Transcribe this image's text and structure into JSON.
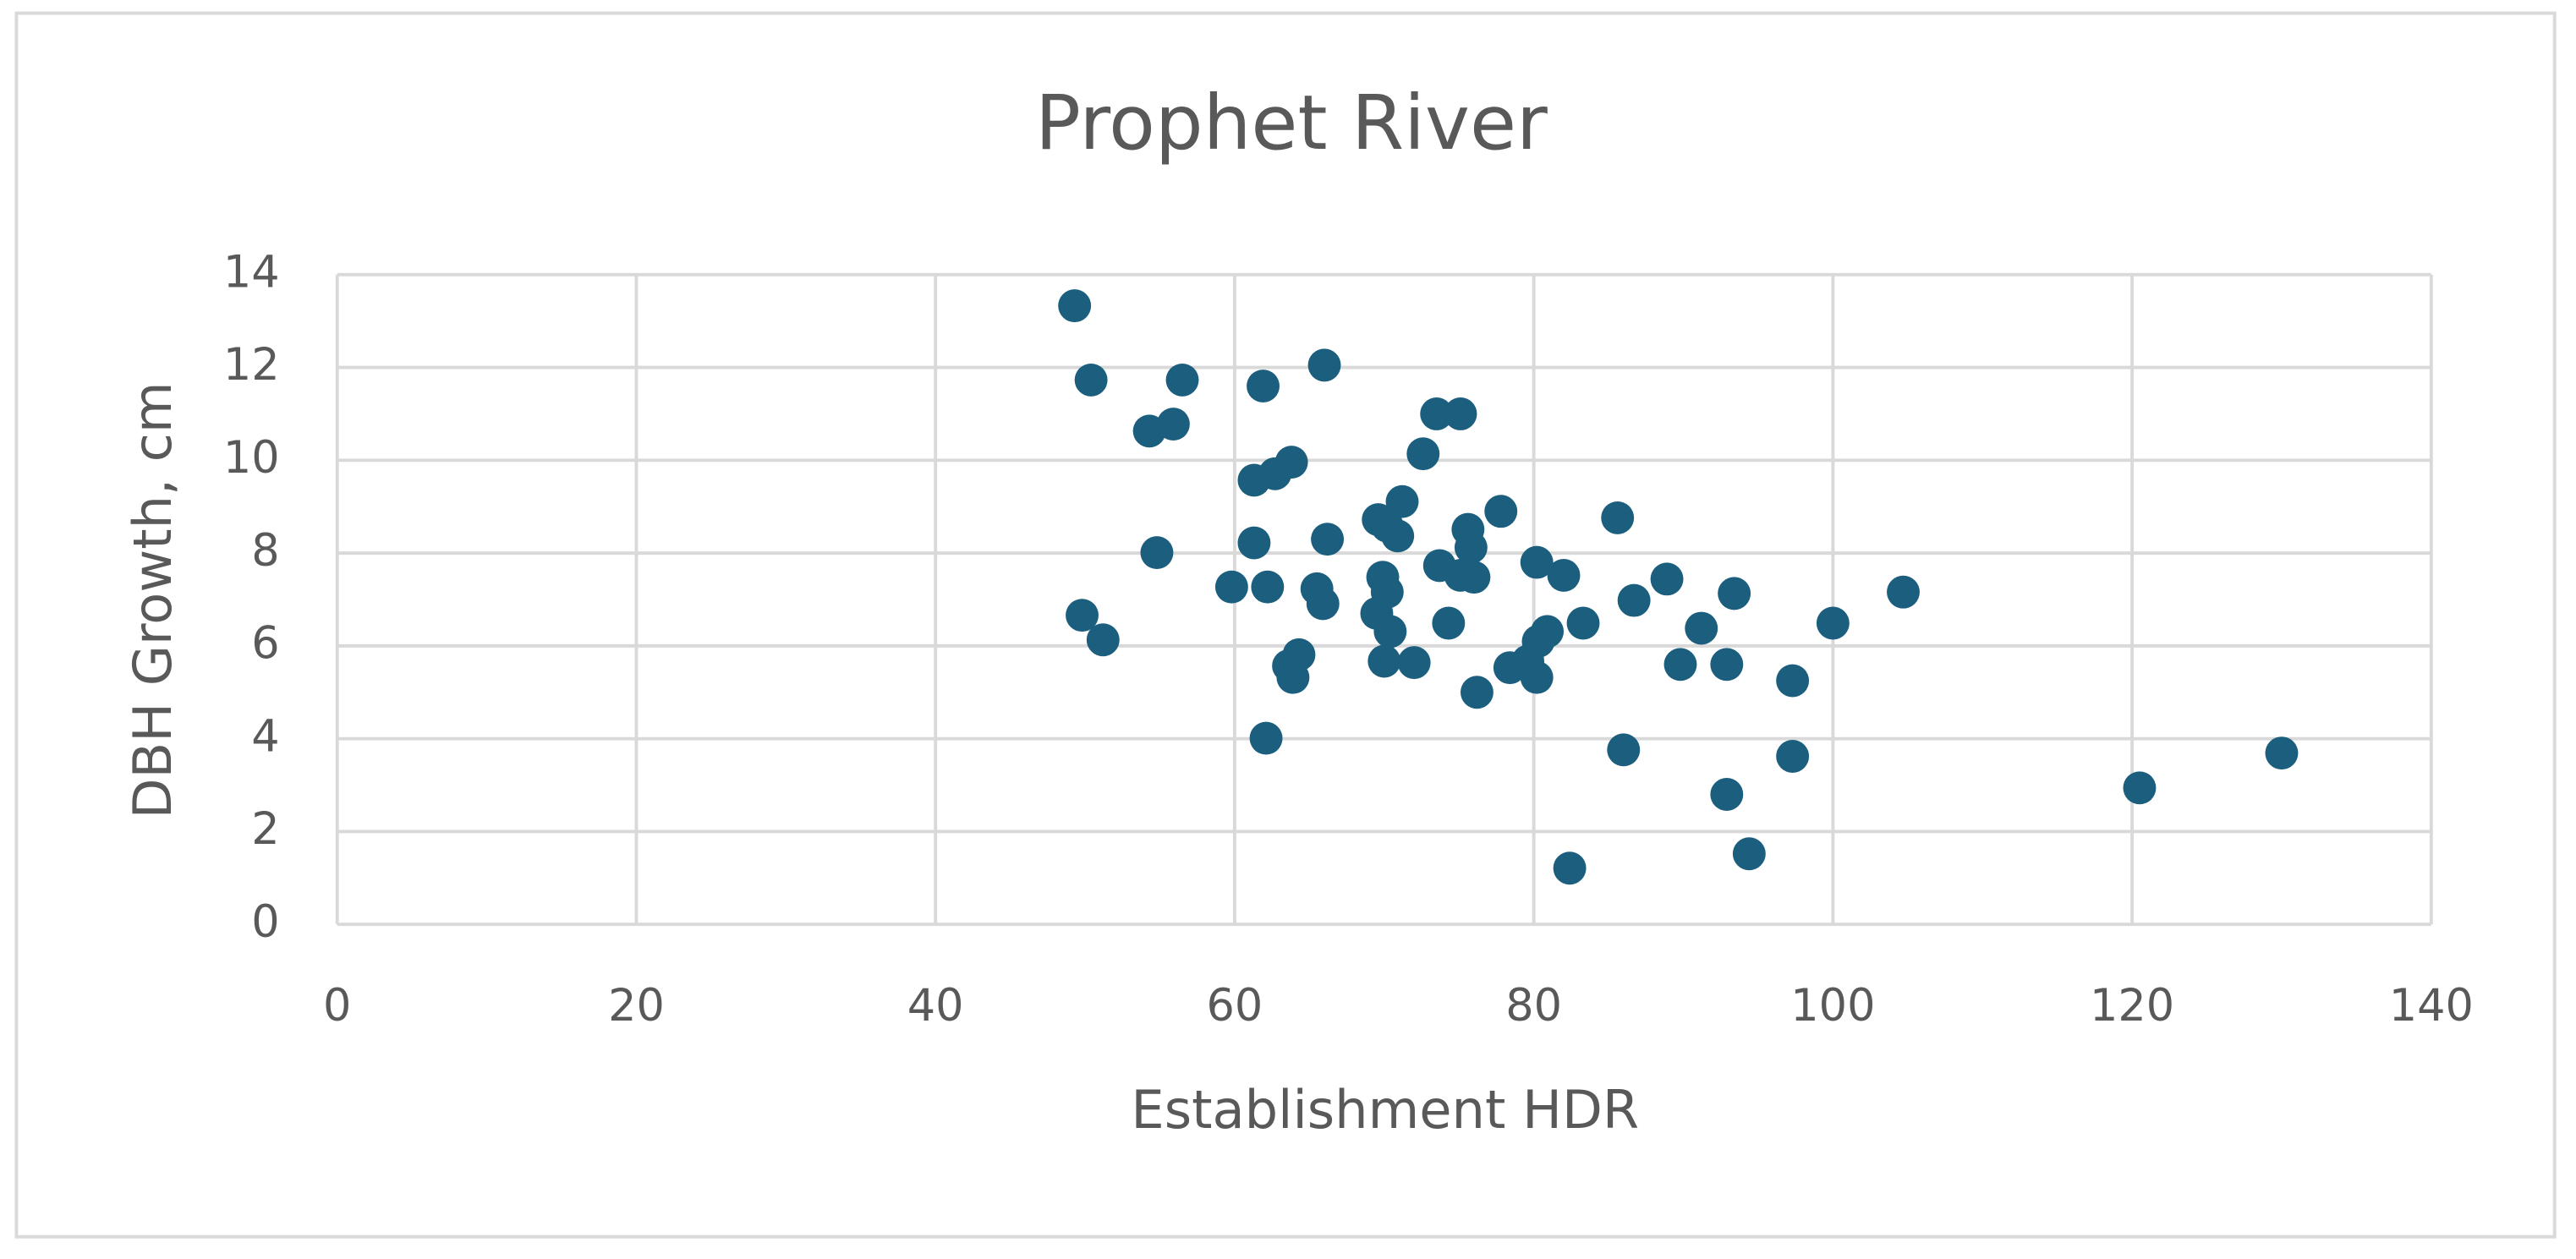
{
  "chart_data": {
    "type": "scatter",
    "title": "Prophet River",
    "x_label": "Establishment HDR",
    "y_label": "DBH Growth, cm",
    "x": [
      49.3,
      50.4,
      56.5,
      61.9,
      66.0,
      73.5,
      75.1,
      54.3,
      55.9,
      72.6,
      63.8,
      62.7,
      61.3,
      71.2,
      77.8,
      69.6,
      70.2,
      70.9,
      85.6,
      75.6,
      75.8,
      66.2,
      61.3,
      54.8,
      73.7,
      80.2,
      82.0,
      69.9,
      75.1,
      76.0,
      88.9,
      59.8,
      62.2,
      65.5,
      70.2,
      93.4,
      104.7,
      65.9,
      86.7,
      69.5,
      49.8,
      74.3,
      83.3,
      100.0,
      91.2,
      70.4,
      80.9,
      80.3,
      51.2,
      64.3,
      89.8,
      92.9,
      70.0,
      72.0,
      63.6,
      78.4,
      79.6,
      80.2,
      63.9,
      97.3,
      76.2,
      62.1,
      86.0,
      97.3,
      130.0,
      120.5,
      92.9,
      94.4,
      82.4
    ],
    "values": [
      13.33,
      11.73,
      11.73,
      11.6,
      12.05,
      11.0,
      11.0,
      10.63,
      10.78,
      10.14,
      9.96,
      9.71,
      9.57,
      9.11,
      8.9,
      8.72,
      8.58,
      8.37,
      8.76,
      8.51,
      8.12,
      8.3,
      8.22,
      8.01,
      7.73,
      7.8,
      7.52,
      7.48,
      7.52,
      7.48,
      7.44,
      7.27,
      7.27,
      7.23,
      7.16,
      7.13,
      7.16,
      6.91,
      6.98,
      6.7,
      6.66,
      6.49,
      6.49,
      6.49,
      6.38,
      6.31,
      6.31,
      6.1,
      6.13,
      5.81,
      5.6,
      5.6,
      5.67,
      5.64,
      5.57,
      5.53,
      5.67,
      5.32,
      5.32,
      5.25,
      5.0,
      4.01,
      3.76,
      3.62,
      3.69,
      2.94,
      2.8,
      1.52,
      1.21
    ],
    "color": "#1b5e7e",
    "xlim": [
      0,
      140
    ],
    "xticks": [
      0,
      20,
      40,
      60,
      80,
      100,
      120,
      140
    ],
    "ylim": [
      0,
      14
    ],
    "yticks": [
      0,
      2,
      4,
      6,
      8,
      10,
      12,
      14
    ],
    "grid": true
  }
}
